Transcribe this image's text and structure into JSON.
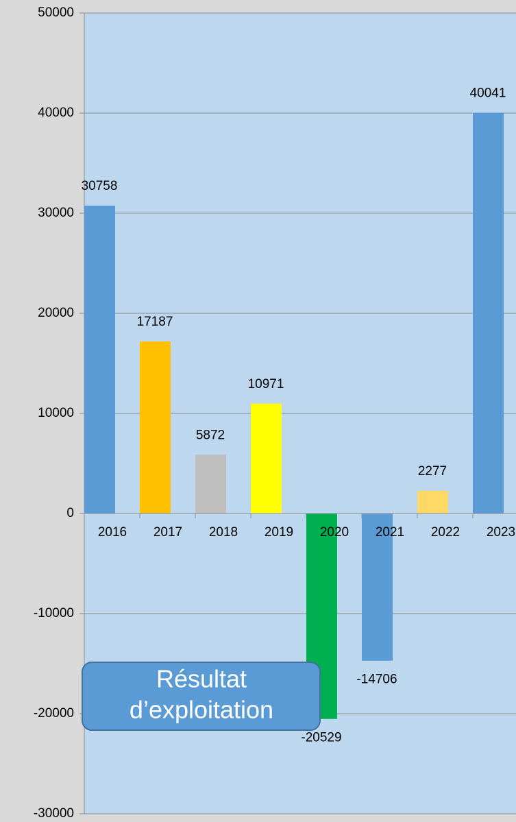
{
  "chart_data": {
    "type": "bar",
    "categories": [
      "2016",
      "2017",
      "2018",
      "2019",
      "2020",
      "2021",
      "2022",
      "2023"
    ],
    "values": [
      30758,
      17187,
      5872,
      10971,
      -20529,
      -14706,
      2277,
      40041
    ],
    "colors": [
      "#5b9bd5",
      "#ffc000",
      "#bfbfbf",
      "#ffff00",
      "#00b050",
      "#5b9bd5",
      "#ffd966",
      "#5b9bd5"
    ],
    "ylim": [
      -30000,
      50000
    ],
    "yticks": [
      -30000,
      -20000,
      -10000,
      0,
      10000,
      20000,
      30000,
      40000,
      50000
    ],
    "grid": true,
    "annotation": [
      "Résultat",
      "d’exploitation"
    ]
  }
}
